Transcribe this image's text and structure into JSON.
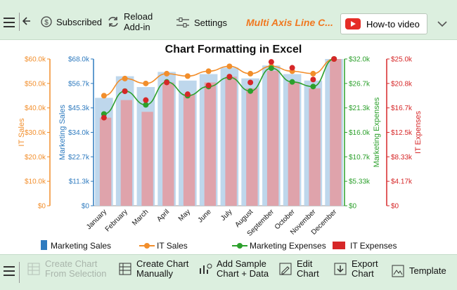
{
  "toolbar": {
    "subscribed_label": "Subscribed",
    "reload_label_1": "Reload",
    "reload_label_2": "Add-in",
    "settings_label": "Settings",
    "app_title": "Multi Axis Line C...",
    "howto_label": "How-to video"
  },
  "bottombar": {
    "create_selection_1": "Create Chart",
    "create_selection_2": "From Selection",
    "create_manual_1": "Create Chart",
    "create_manual_2": "Manually",
    "add_sample_1": "Add Sample",
    "add_sample_2": "Chart + Data",
    "edit_1": "Edit",
    "edit_2": "Chart",
    "export_1": "Export",
    "export_2": "Chart",
    "template": "Template"
  },
  "colors": {
    "marketing_sales": "#b7d3ea",
    "it_sales": "#f28e2b",
    "marketing_expenses": "#2ca02c",
    "it_expenses": "#d62728"
  },
  "chart_data": {
    "type": "bar",
    "title": "Chart Formatting in Excel",
    "categories": [
      "January",
      "February",
      "March",
      "April",
      "May",
      "June",
      "July",
      "August",
      "September",
      "October",
      "November",
      "December"
    ],
    "axes": [
      {
        "label": "IT Sales",
        "ticks": [
          "$0",
          "$10.0k",
          "$20.0k",
          "$30.0k",
          "$40.0k",
          "$50.0k",
          "$60.0k"
        ],
        "range": [
          0,
          60000
        ]
      },
      {
        "label": "Marketing Sales",
        "ticks": [
          "$0",
          "$11.3k",
          "$22.7k",
          "$34.0k",
          "$45.3k",
          "$56.7k",
          "$68.0k"
        ],
        "range": [
          0,
          68000
        ]
      },
      {
        "label": "Marketing Expenses",
        "ticks": [
          "$0",
          "$5.33k",
          "$10.7k",
          "$16.0k",
          "$21.3k",
          "$26.7k",
          "$32.0k"
        ],
        "range": [
          0,
          32000
        ]
      },
      {
        "label": "IT Expenses",
        "ticks": [
          "$0",
          "$4.17k",
          "$8.33k",
          "$12.5k",
          "$16.7k",
          "$20.8k",
          "$25.0k"
        ],
        "range": [
          0,
          25000
        ]
      }
    ],
    "series": [
      {
        "name": "Marketing Sales",
        "type": "bar",
        "axis": 1,
        "values": [
          50000,
          60000,
          55000,
          62000,
          58000,
          61000,
          64000,
          59000,
          65000,
          61000,
          58000,
          68000
        ]
      },
      {
        "name": "IT Expenses",
        "type": "bar",
        "axis": 3,
        "values": [
          15000,
          18000,
          16000,
          21000,
          19000,
          21000,
          22000,
          20000,
          23000,
          21000,
          20000,
          25000
        ]
      },
      {
        "name": "IT Sales",
        "type": "line",
        "axis": 0,
        "values": [
          45000,
          52000,
          50000,
          54000,
          53000,
          55000,
          57000,
          54000,
          57000,
          55000,
          54000,
          60000
        ]
      },
      {
        "name": "Marketing Expenses",
        "type": "line",
        "axis": 2,
        "values": [
          20000,
          25000,
          22000,
          27000,
          24000,
          26000,
          28000,
          25000,
          30000,
          27000,
          26000,
          32000
        ]
      },
      {
        "name": "IT Expenses",
        "type": "points",
        "axis": 3,
        "values": [
          15000,
          19500,
          18000,
          21000,
          19000,
          20500,
          22000,
          21000,
          24500,
          23500,
          21500,
          25000
        ]
      }
    ],
    "legend": [
      "Marketing Sales",
      "IT Sales",
      "Marketing Expenses",
      "IT Expenses"
    ],
    "legend_position": "bottom"
  }
}
